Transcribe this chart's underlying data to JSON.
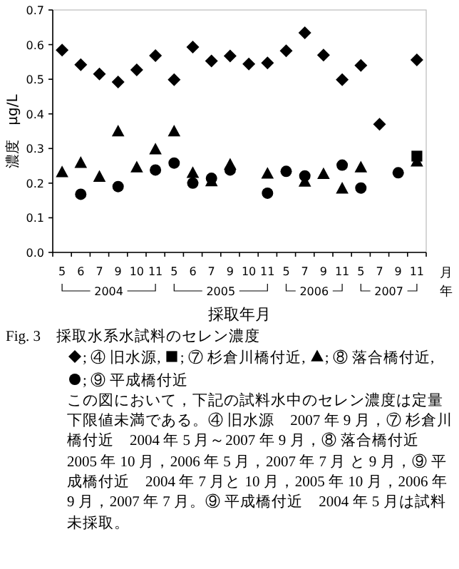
{
  "chart_data": {
    "type": "scatter",
    "title": "Fig. 3　採取水系水試料のセレン濃度",
    "xlabel": "採取年月",
    "ylabel": "濃度　μg/L",
    "categories": [
      "5",
      "6",
      "7",
      "9",
      "10",
      "11",
      "5",
      "6",
      "7",
      "9",
      "10",
      "11",
      "5",
      "7",
      "9",
      "11",
      "5",
      "7",
      "9",
      "11"
    ],
    "ylim": [
      0,
      0.7
    ],
    "yticks": [
      {
        "value": 0,
        "label": "0.0"
      },
      {
        "value": 0.1,
        "label": "0.1"
      },
      {
        "value": 0.2,
        "label": "0.2"
      },
      {
        "value": 0.3,
        "label": "0.3"
      },
      {
        "value": 0.4,
        "label": "0.4"
      },
      {
        "value": 0.5,
        "label": "0.5"
      },
      {
        "value": 0.6,
        "label": "0.6"
      },
      {
        "value": 0.7,
        "label": "0.7"
      }
    ],
    "series": [
      {
        "name": "; ④ 旧水源,",
        "color": "#000000",
        "marker": "diamond",
        "values": [
          0.584,
          0.542,
          0.515,
          0.492,
          0.527,
          0.568,
          0.499,
          0.593,
          0.553,
          0.567,
          0.544,
          0.547,
          0.582,
          0.634,
          0.57,
          0.499,
          0.54,
          0.37,
          null,
          0.556
        ]
      },
      {
        "name": "; ⑦ 杉倉川橋付近,",
        "color": "#000000",
        "marker": "square",
        "values": [
          null,
          null,
          null,
          null,
          null,
          null,
          null,
          null,
          null,
          null,
          null,
          null,
          null,
          null,
          null,
          null,
          null,
          null,
          null,
          0.278
        ]
      },
      {
        "name": "; ⑧ 落合橋付近,",
        "color": "#000000",
        "marker": "triangle",
        "values": [
          0.231,
          0.258,
          0.218,
          0.349,
          0.245,
          0.297,
          0.349,
          0.229,
          0.205,
          0.253,
          null,
          0.227,
          null,
          0.204,
          0.226,
          0.184,
          0.245,
          null,
          null,
          0.262
        ]
      },
      {
        "name": "; ⑨ 平成橋付近",
        "color": "#000000",
        "marker": "circle",
        "values": [
          null,
          0.168,
          null,
          0.19,
          null,
          0.238,
          0.258,
          0.2,
          0.214,
          0.238,
          null,
          0.171,
          0.234,
          0.221,
          null,
          0.252,
          0.186,
          null,
          0.23,
          null
        ]
      }
    ],
    "legend": "bottom",
    "grid": false,
    "annotations": [
      "2004",
      "2005",
      "2006",
      "2007",
      "月",
      "年",
      "この図において，下記の試料水中のセレン濃度は定量下限値未満である。④ 旧水源　2007 年 9 月，⑦ 杉倉川橋付近　2004 年 5 月～2007 年 9 月，⑧ 落合橋付近　2005 年 10 月，2006 年 5 月，2007 年 7 月 と 9 月，⑨ 平成橋付近　2004 年 7 月と 10 月，2005 年 10 月，2006 年 9 月，2007 年 7 月。⑨ 平成橋付近　2004 年 5 月は試料未採取。"
    ]
  }
}
